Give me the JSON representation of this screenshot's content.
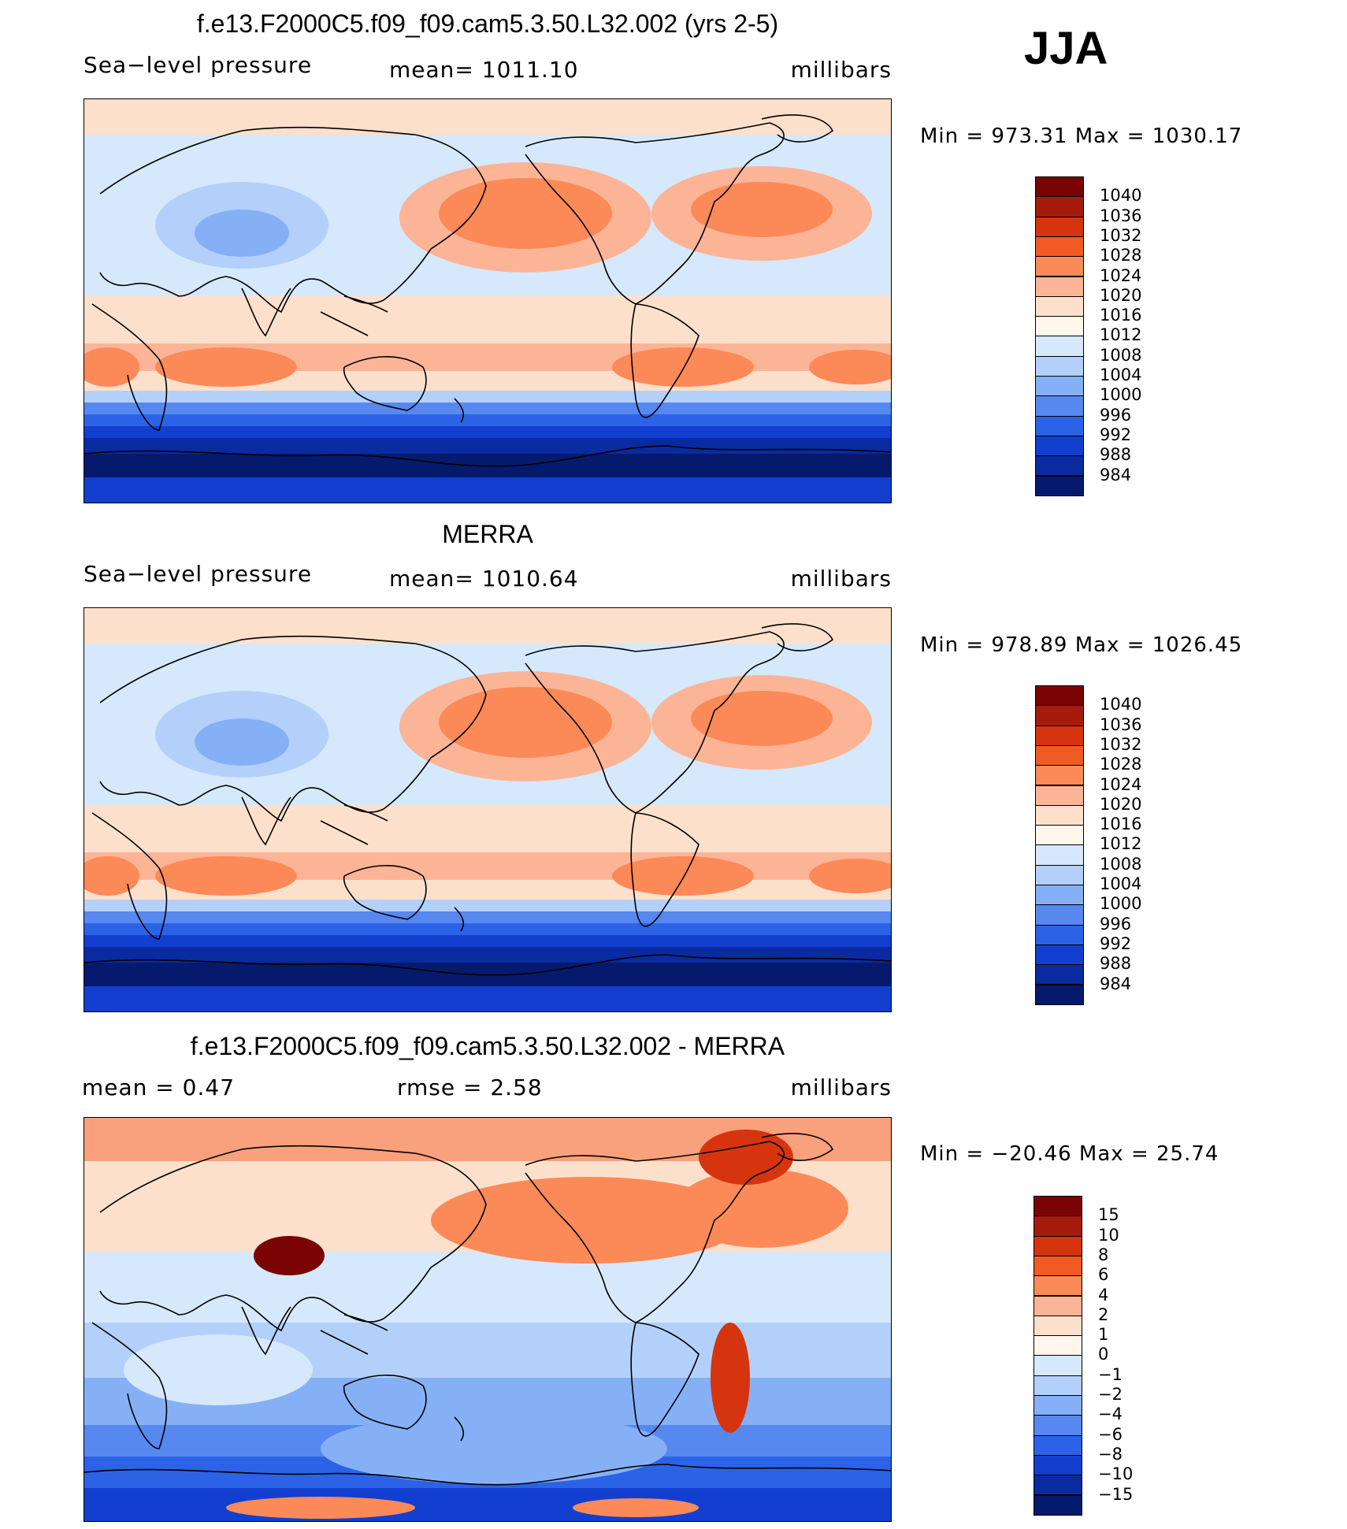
{
  "season": "JJA",
  "panels": [
    {
      "title": "f.e13.F2000C5.f09_f09.cam5.3.50.L32.002 (yrs 2-5)",
      "left_label": "Sea−level pressure",
      "center_label": "mean=  1011.10",
      "right_label": "millibars",
      "minmax": "Min  =  973.31  Max  =  1030.17",
      "colorbar": {
        "labels": [
          "1040",
          "1036",
          "1032",
          "1028",
          "1024",
          "1020",
          "1016",
          "1012",
          "1008",
          "1004",
          "1000",
          "996",
          "992",
          "988",
          "984"
        ],
        "colors": [
          "#7a0403",
          "#a51c0d",
          "#d6340f",
          "#f25a25",
          "#fb8a58",
          "#fcb496",
          "#fde0cb",
          "#fff6ec",
          "#d6e8fb",
          "#b3d0fa",
          "#86b0f6",
          "#5688f0",
          "#2c63e6",
          "#123fcf",
          "#0a2aa0",
          "#061a6d"
        ]
      },
      "map_style": "model"
    },
    {
      "title": "MERRA",
      "left_label": "Sea−level pressure",
      "center_label": "mean=  1010.64",
      "right_label": "millibars",
      "minmax": "Min  =  978.89  Max  =  1026.45",
      "colorbar": {
        "labels": [
          "1040",
          "1036",
          "1032",
          "1028",
          "1024",
          "1020",
          "1016",
          "1012",
          "1008",
          "1004",
          "1000",
          "996",
          "992",
          "988",
          "984"
        ],
        "colors": [
          "#7a0403",
          "#a51c0d",
          "#d6340f",
          "#f25a25",
          "#fb8a58",
          "#fcb496",
          "#fde0cb",
          "#fff6ec",
          "#d6e8fb",
          "#b3d0fa",
          "#86b0f6",
          "#5688f0",
          "#2c63e6",
          "#123fcf",
          "#0a2aa0",
          "#061a6d"
        ]
      },
      "map_style": "obs"
    },
    {
      "title": "f.e13.F2000C5.f09_f09.cam5.3.50.L32.002 - MERRA",
      "left_label": "mean  =      0.47",
      "center_label": "rmse  =      2.58",
      "right_label": "millibars",
      "minmax": "Min  =  −20.46  Max  =     25.74",
      "colorbar": {
        "labels": [
          "15",
          "10",
          "8",
          "6",
          "4",
          "2",
          "1",
          "0",
          "−1",
          "−2",
          "−4",
          "−6",
          "−8",
          "−10",
          "−15"
        ],
        "colors": [
          "#7a0403",
          "#a51c0d",
          "#d6340f",
          "#f25a25",
          "#fb8a58",
          "#fcb496",
          "#fde0cb",
          "#fff6ec",
          "#d6e8fb",
          "#b3d0fa",
          "#86b0f6",
          "#5688f0",
          "#2c63e6",
          "#123fcf",
          "#0a2aa0",
          "#061a6d"
        ]
      },
      "map_style": "diff"
    }
  ]
}
